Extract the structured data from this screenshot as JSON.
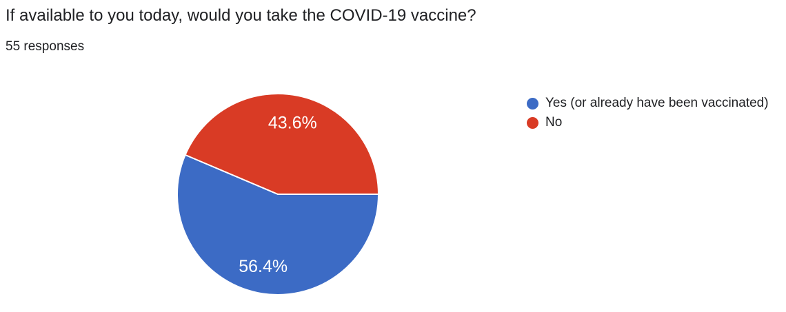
{
  "header": {
    "title": "If available to you today, would you take the COVID-19 vaccine?",
    "responses_count": "55 responses"
  },
  "chart_data": {
    "type": "pie",
    "title": "If available to you today, would you take the COVID-19 vaccine?",
    "subtitle": "55 responses",
    "total_responses": 55,
    "categories": [
      "Yes (or already have been vaccinated)",
      "No"
    ],
    "values": [
      56.4,
      43.6
    ],
    "unit": "%",
    "start_angle_deg": 0,
    "direction": "clockwise",
    "legend_position": "right",
    "slice_label_text_color": "#ffffff",
    "slices": [
      {
        "id": "yes",
        "label": "Yes (or already have been vaccinated)",
        "percent": 56.4,
        "percent_label": "56.4%",
        "color": "#3c6bc5"
      },
      {
        "id": "no",
        "label": "No",
        "percent": 43.6,
        "percent_label": "43.6%",
        "color": "#d93b25"
      }
    ]
  },
  "colors": {
    "background": "#ffffff",
    "title_text": "#202124",
    "legend_text": "#202124",
    "slice_separator": "#ffffff"
  }
}
